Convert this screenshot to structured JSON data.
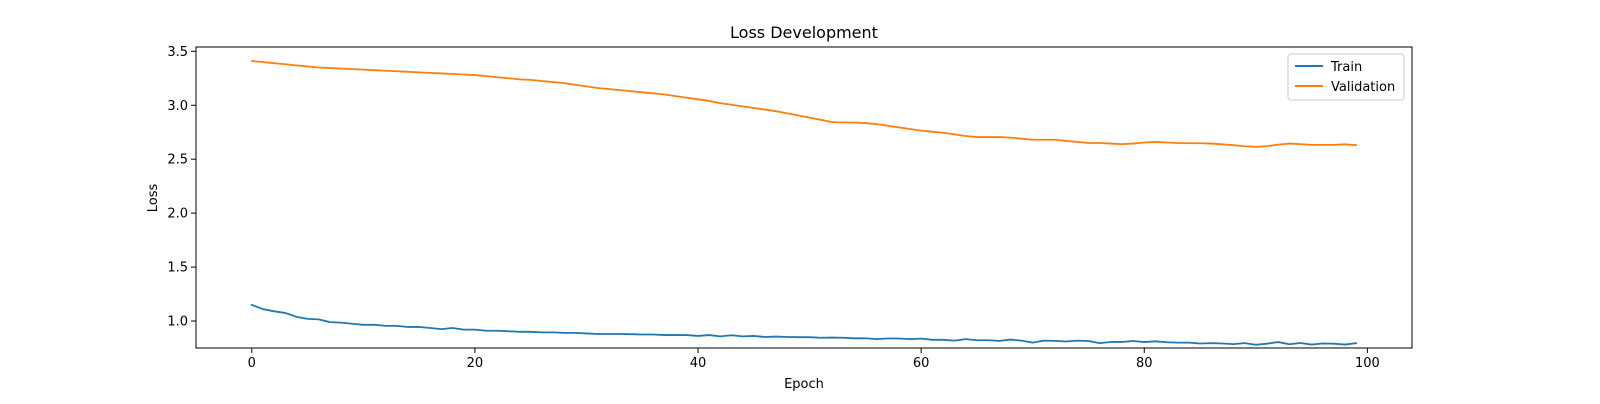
{
  "chart_data": {
    "type": "line",
    "title": "Loss Development",
    "xlabel": "Epoch",
    "ylabel": "Loss",
    "xlim": [
      -5,
      104
    ],
    "ylim": [
      0.75,
      3.54
    ],
    "xticks": [
      0,
      20,
      40,
      60,
      80,
      100
    ],
    "xtick_labels": [
      "0",
      "20",
      "40",
      "60",
      "80",
      "100"
    ],
    "yticks": [
      1.0,
      1.5,
      2.0,
      2.5,
      3.0,
      3.5
    ],
    "ytick_labels": [
      "1.0",
      "1.5",
      "2.0",
      "2.5",
      "3.0",
      "3.5"
    ],
    "grid": false,
    "legend_position": "top-right",
    "x": [
      0,
      1,
      2,
      3,
      4,
      5,
      6,
      7,
      8,
      9,
      10,
      11,
      12,
      13,
      14,
      15,
      16,
      17,
      18,
      19,
      20,
      21,
      22,
      23,
      24,
      25,
      26,
      27,
      28,
      29,
      30,
      31,
      32,
      33,
      34,
      35,
      36,
      37,
      38,
      39,
      40,
      41,
      42,
      43,
      44,
      45,
      46,
      47,
      48,
      49,
      50,
      51,
      52,
      53,
      54,
      55,
      56,
      57,
      58,
      59,
      60,
      61,
      62,
      63,
      64,
      65,
      66,
      67,
      68,
      69,
      70,
      71,
      72,
      73,
      74,
      75,
      76,
      77,
      78,
      79,
      80,
      81,
      82,
      83,
      84,
      85,
      86,
      87,
      88,
      89,
      90,
      91,
      92,
      93,
      94,
      95,
      96,
      97,
      98,
      99
    ],
    "series": [
      {
        "name": "Train",
        "color": "#1f77b4",
        "values": [
          1.15,
          1.11,
          1.09,
          1.075,
          1.04,
          1.02,
          1.015,
          0.99,
          0.985,
          0.975,
          0.965,
          0.965,
          0.955,
          0.955,
          0.945,
          0.945,
          0.935,
          0.925,
          0.935,
          0.92,
          0.92,
          0.91,
          0.91,
          0.905,
          0.9,
          0.9,
          0.895,
          0.895,
          0.89,
          0.89,
          0.885,
          0.88,
          0.88,
          0.88,
          0.878,
          0.875,
          0.875,
          0.87,
          0.87,
          0.87,
          0.862,
          0.87,
          0.858,
          0.868,
          0.858,
          0.862,
          0.852,
          0.856,
          0.852,
          0.85,
          0.85,
          0.845,
          0.847,
          0.845,
          0.84,
          0.84,
          0.832,
          0.838,
          0.838,
          0.832,
          0.837,
          0.826,
          0.826,
          0.818,
          0.832,
          0.822,
          0.822,
          0.816,
          0.828,
          0.818,
          0.8,
          0.818,
          0.816,
          0.81,
          0.818,
          0.815,
          0.795,
          0.806,
          0.806,
          0.815,
          0.805,
          0.812,
          0.803,
          0.8,
          0.8,
          0.792,
          0.795,
          0.792,
          0.786,
          0.795,
          0.78,
          0.79,
          0.805,
          0.785,
          0.796,
          0.782,
          0.792,
          0.79,
          0.782,
          0.795
        ]
      },
      {
        "name": "Validation",
        "color": "#ff7f0e",
        "values": [
          3.41,
          3.4,
          3.39,
          3.38,
          3.37,
          3.36,
          3.35,
          3.345,
          3.34,
          3.335,
          3.33,
          3.325,
          3.32,
          3.315,
          3.31,
          3.305,
          3.3,
          3.295,
          3.29,
          3.285,
          3.28,
          3.27,
          3.26,
          3.25,
          3.24,
          3.235,
          3.225,
          3.215,
          3.205,
          3.19,
          3.175,
          3.16,
          3.15,
          3.14,
          3.13,
          3.12,
          3.11,
          3.1,
          3.085,
          3.07,
          3.055,
          3.04,
          3.02,
          3.005,
          2.99,
          2.975,
          2.96,
          2.945,
          2.925,
          2.905,
          2.885,
          2.865,
          2.845,
          2.84,
          2.84,
          2.835,
          2.825,
          2.81,
          2.795,
          2.78,
          2.765,
          2.755,
          2.745,
          2.73,
          2.715,
          2.705,
          2.705,
          2.705,
          2.7,
          2.69,
          2.68,
          2.68,
          2.68,
          2.67,
          2.66,
          2.65,
          2.65,
          2.645,
          2.64,
          2.645,
          2.655,
          2.66,
          2.655,
          2.65,
          2.648,
          2.648,
          2.645,
          2.638,
          2.63,
          2.62,
          2.615,
          2.62,
          2.635,
          2.645,
          2.64,
          2.633,
          2.633,
          2.633,
          2.638,
          2.63
        ]
      }
    ]
  }
}
